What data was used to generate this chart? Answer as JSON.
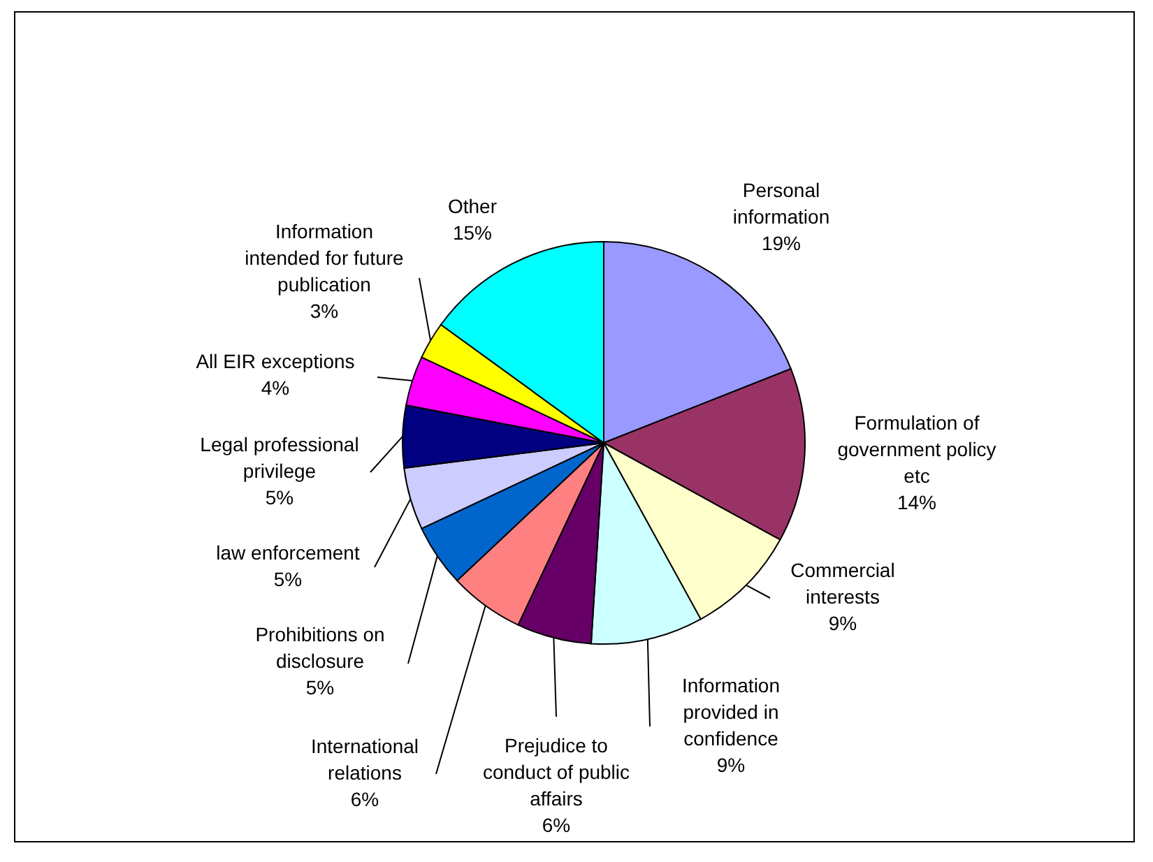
{
  "chart_data": {
    "type": "pie",
    "categories": [
      "Personal information",
      "Formulation of government policy etc",
      "Commercial interests",
      "Information provided in confidence",
      "Prejudice to conduct of public affairs",
      "International relations",
      "Prohibitions on disclosure",
      "law enforcement",
      "Legal professional privilege",
      "All EIR exceptions",
      "Information intended for future publication",
      "Other"
    ],
    "values": [
      19,
      14,
      9,
      9,
      6,
      6,
      5,
      5,
      5,
      4,
      3,
      15
    ],
    "colors": [
      "#9999ff",
      "#993366",
      "#ffffcc",
      "#ccffff",
      "#660066",
      "#ff8080",
      "#0066cc",
      "#ccccff",
      "#000080",
      "#ff00ff",
      "#ffff00",
      "#00ffff"
    ],
    "value_labels": [
      "19%",
      "14%",
      "9%",
      "9%",
      "6%",
      "6%",
      "5%",
      "5%",
      "5%",
      "4%",
      "3%",
      "15%"
    ]
  }
}
